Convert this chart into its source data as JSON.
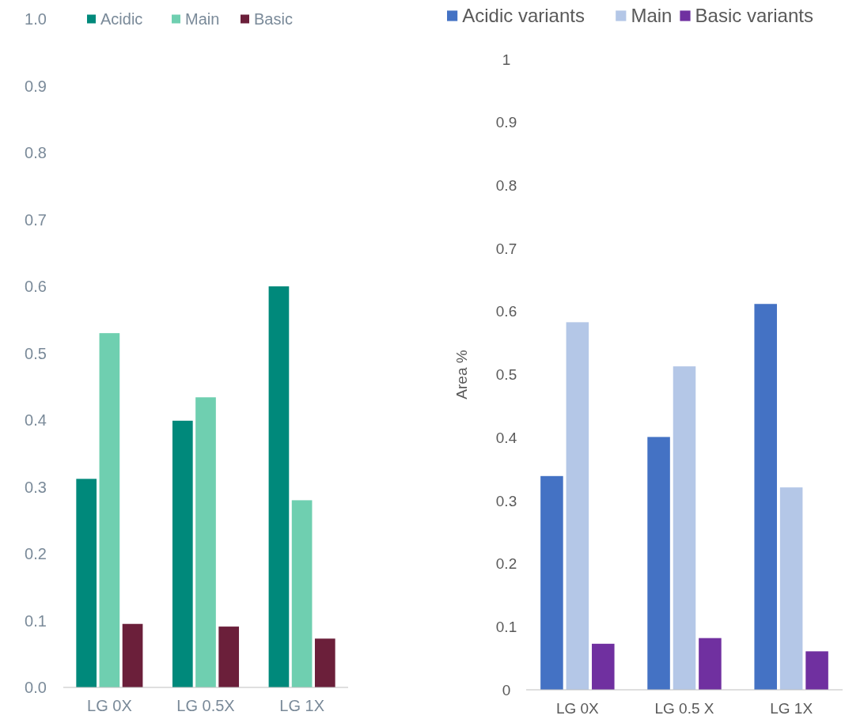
{
  "chart_data": [
    {
      "type": "bar",
      "categories": [
        "LG 0X",
        "LG 0.5X",
        "LG 1X"
      ],
      "series": [
        {
          "name": "Acidic",
          "color": "#00897b",
          "values": [
            0.312,
            0.399,
            0.6
          ]
        },
        {
          "name": "Main",
          "color": "#6fcfb0",
          "values": [
            0.53,
            0.434,
            0.28
          ]
        },
        {
          "name": "Basic",
          "color": "#6b1f3a",
          "values": [
            0.095,
            0.091,
            0.073
          ]
        }
      ],
      "ylim": [
        0,
        1
      ],
      "yticks": [
        {
          "value": 0,
          "label": "0.0"
        },
        0.1,
        0.2,
        0.3,
        0.4,
        0.5,
        0.6,
        0.7,
        0.8,
        0.9,
        {
          "value": 1,
          "label": "1.0"
        }
      ],
      "grid": false,
      "legend": "top"
    },
    {
      "type": "bar",
      "categories": [
        "LG 0X",
        "LG 0.5 X",
        "LG 1X"
      ],
      "ylabel": "Area %",
      "series": [
        {
          "name": "Acidic variants",
          "color": "#4472c4",
          "values": [
            0.339,
            0.401,
            0.612
          ]
        },
        {
          "name": "Main",
          "color": "#b4c7e7",
          "values": [
            0.583,
            0.513,
            0.321
          ]
        },
        {
          "name": "Basic variants",
          "color": "#7030a0",
          "values": [
            0.073,
            0.082,
            0.061
          ]
        }
      ],
      "ylim": [
        0,
        1
      ],
      "yticks": [
        0,
        0.1,
        0.2,
        0.3,
        0.4,
        0.5,
        0.6,
        0.7,
        0.8,
        0.9,
        1
      ],
      "grid": false,
      "legend": "top"
    }
  ]
}
